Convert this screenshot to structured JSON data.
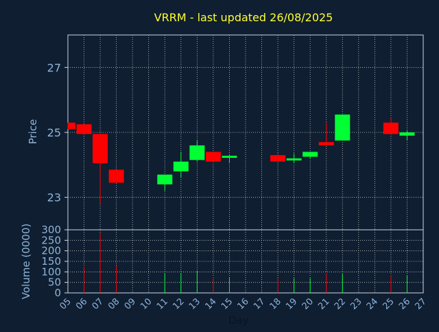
{
  "colors": {
    "background": "#0f1e31",
    "axes_text": "#8fb5d9",
    "title": "#ffff33",
    "grid": "#cccccc",
    "up": "#00ff33",
    "down": "#ff0000"
  },
  "chart_data": {
    "type": "candlestick",
    "title": "VRRM - last updated 26/08/2025",
    "xlabel": "Day",
    "x_ticks": [
      "05",
      "06",
      "07",
      "08",
      "09",
      "10",
      "11",
      "12",
      "13",
      "14",
      "15",
      "16",
      "17",
      "18",
      "19",
      "20",
      "21",
      "22",
      "23",
      "24",
      "25",
      "26",
      "27"
    ],
    "price_panel": {
      "ylabel": "Price",
      "ylim": [
        22.0,
        28.0
      ],
      "yticks": [
        "23",
        "25",
        "27"
      ],
      "grid": true
    },
    "volume_panel": {
      "ylabel": "Volume (0000)",
      "ylim": [
        0,
        300
      ],
      "yticks": [
        "0",
        "50",
        "100",
        "150",
        "200",
        "250",
        "300"
      ],
      "grid": true
    },
    "candles": [
      {
        "day": "05",
        "open": 25.3,
        "close": 25.1,
        "high": 25.3,
        "low": 25.1,
        "volume": 0
      },
      {
        "day": "06",
        "open": 25.25,
        "close": 24.95,
        "high": 25.25,
        "low": 24.95,
        "volume": 125
      },
      {
        "day": "07",
        "open": 24.95,
        "close": 24.05,
        "high": 24.95,
        "low": 22.8,
        "volume": 285
      },
      {
        "day": "08",
        "open": 23.85,
        "close": 23.45,
        "high": 23.85,
        "low": 23.45,
        "volume": 130
      },
      {
        "day": "11",
        "open": 23.4,
        "close": 23.7,
        "high": 23.7,
        "low": 23.2,
        "volume": 95
      },
      {
        "day": "12",
        "open": 23.8,
        "close": 24.1,
        "high": 24.4,
        "low": 23.6,
        "volume": 95
      },
      {
        "day": "13",
        "open": 24.15,
        "close": 24.6,
        "high": 24.75,
        "low": 24.1,
        "volume": 105
      },
      {
        "day": "14",
        "open": 24.4,
        "close": 24.1,
        "high": 24.4,
        "low": 24.05,
        "volume": 75
      },
      {
        "day": "15",
        "open": 24.22,
        "close": 24.28,
        "high": 24.3,
        "low": 24.05,
        "volume": 75
      },
      {
        "day": "18",
        "open": 24.3,
        "close": 24.1,
        "high": 24.35,
        "low": 24.1,
        "volume": 70
      },
      {
        "day": "19",
        "open": 24.15,
        "close": 24.2,
        "high": 24.35,
        "low": 24.05,
        "volume": 70
      },
      {
        "day": "20",
        "open": 24.25,
        "close": 24.4,
        "high": 24.4,
        "low": 24.2,
        "volume": 70
      },
      {
        "day": "21",
        "open": 24.7,
        "close": 24.6,
        "high": 25.3,
        "low": 24.6,
        "volume": 95
      },
      {
        "day": "22",
        "open": 24.75,
        "close": 25.55,
        "high": 25.55,
        "low": 24.75,
        "volume": 90
      },
      {
        "day": "25",
        "open": 25.3,
        "close": 24.95,
        "high": 25.45,
        "low": 24.95,
        "volume": 85
      },
      {
        "day": "26",
        "open": 24.9,
        "close": 25.0,
        "high": 25.05,
        "low": 24.75,
        "volume": 85
      }
    ]
  }
}
